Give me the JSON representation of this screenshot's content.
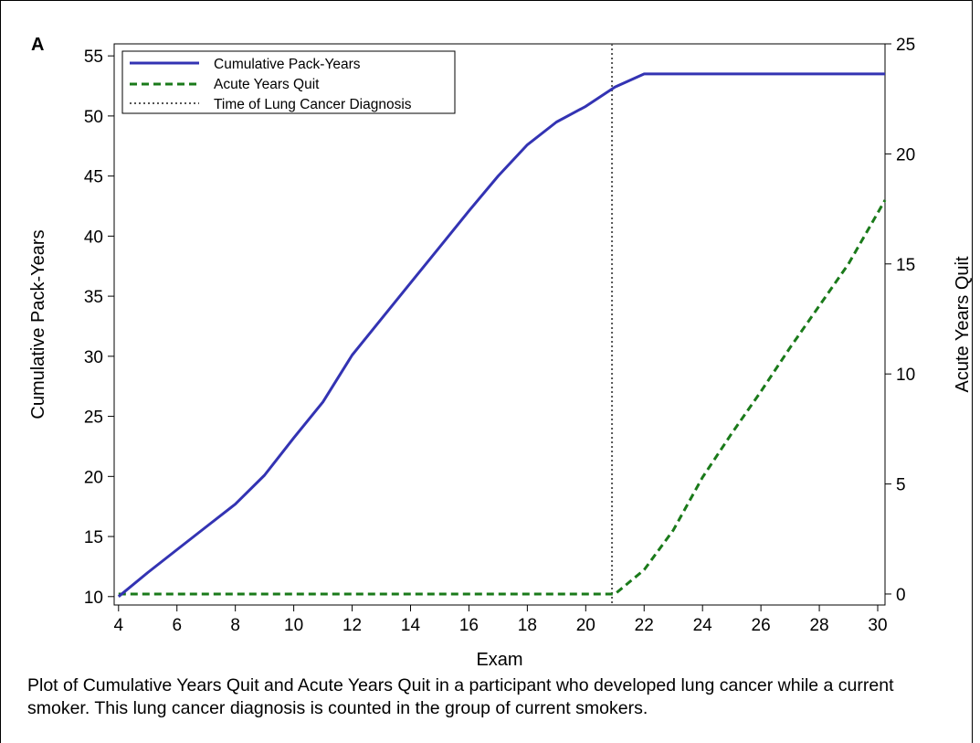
{
  "panel_label": "A",
  "caption": "Plot of Cumulative Years Quit and Acute Years Quit in a participant who developed lung cancer while a current smoker. This lung cancer diagnosis is counted in the group of current smokers.",
  "colors": {
    "cumulative": "#3333b3",
    "acute": "#1a7a1a",
    "diagnosis": "#555555"
  },
  "chart_data": {
    "type": "line",
    "xlabel": "Exam",
    "ylabel": "Cumulative Pack-Years",
    "y2label": "Acute Years Quit",
    "xlim": [
      3.85,
      30.25
    ],
    "ylim": [
      9.3,
      56
    ],
    "y2lim": [
      -0.5,
      25.0
    ],
    "xticks": [
      4,
      6,
      8,
      10,
      12,
      14,
      16,
      18,
      20,
      22,
      24,
      26,
      28,
      30
    ],
    "yticks": [
      10,
      15,
      20,
      25,
      30,
      35,
      40,
      45,
      50,
      55
    ],
    "y2ticks": [
      0,
      5,
      10,
      15,
      20,
      25
    ],
    "legend_position": "top-left",
    "grid": false,
    "series": [
      {
        "name": "Cumulative Pack-Years",
        "axis": "left",
        "style": "solid",
        "x": [
          4,
          5,
          6,
          7,
          8,
          9,
          10,
          11,
          12,
          13,
          14,
          15,
          16,
          17,
          18,
          19,
          20,
          21,
          22,
          23,
          24,
          25,
          26,
          27,
          28,
          29,
          30.25
        ],
        "y": [
          10,
          12,
          13.9,
          15.8,
          17.7,
          20.1,
          23.2,
          26.2,
          30.1,
          33.1,
          36.1,
          39.1,
          42.1,
          45.0,
          47.6,
          49.5,
          50.8,
          52.4,
          53.5,
          53.5,
          53.5,
          53.5,
          53.5,
          53.5,
          53.5,
          53.5,
          53.5
        ]
      },
      {
        "name": "Acute Years Quit",
        "axis": "right",
        "style": "dashed",
        "x": [
          4,
          21,
          22,
          23,
          24,
          25,
          26,
          27,
          28,
          29,
          30.25
        ],
        "y": [
          0,
          0,
          1.1,
          2.9,
          5.3,
          7.3,
          9.2,
          11.2,
          13.1,
          15.0,
          17.9
        ]
      },
      {
        "name": "Time of Lung Cancer Diagnosis",
        "axis": "vertical",
        "style": "dotted",
        "x": [
          20.9
        ]
      }
    ]
  }
}
